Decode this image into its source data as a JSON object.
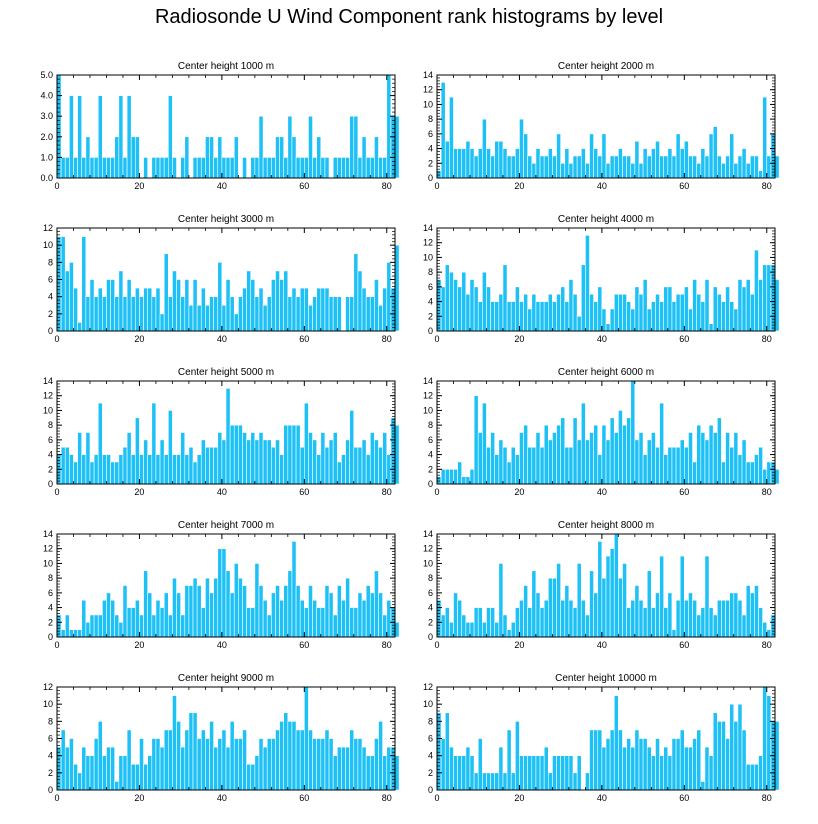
{
  "figure_title": "Radiosonde U Wind Component rank histograms by level",
  "colors": {
    "bar": "#1ec1f5",
    "bar_edge": "#ffffff",
    "axis": "#000000"
  },
  "chart_data": [
    {
      "type": "bar",
      "title": "Center height 1000 m",
      "xlabel": "",
      "ylabel": "",
      "xlim": [
        0,
        82
      ],
      "xticks": [
        0,
        20,
        40,
        60,
        80
      ],
      "ylim": [
        0,
        5
      ],
      "yticks": [
        0,
        1,
        2,
        3,
        4,
        5
      ],
      "ytick_labels": [
        "0.0",
        "1.0",
        "2.0",
        "3.0",
        "4.0",
        "5.0"
      ],
      "values": [
        5,
        1,
        1,
        4,
        1,
        4,
        1,
        2,
        1,
        1,
        4,
        1,
        1,
        1,
        2,
        4,
        1,
        4,
        2,
        2,
        0,
        1,
        0,
        1,
        1,
        1,
        1,
        4,
        1,
        0,
        1,
        2,
        0,
        1,
        1,
        1,
        2,
        2,
        1,
        2,
        1,
        1,
        1,
        2,
        0,
        1,
        0,
        1,
        1,
        3,
        1,
        1,
        1,
        2,
        2,
        1,
        3,
        2,
        1,
        1,
        1,
        3,
        1,
        2,
        1,
        1,
        0,
        1,
        1,
        1,
        1,
        3,
        3,
        1,
        2,
        1,
        1,
        2,
        1,
        1,
        5,
        3,
        3
      ]
    },
    {
      "type": "bar",
      "title": "Center height 2000 m",
      "xlabel": "",
      "ylabel": "",
      "xlim": [
        0,
        82
      ],
      "xticks": [
        0,
        20,
        40,
        60,
        80
      ],
      "ylim": [
        0,
        14
      ],
      "yticks": [
        0,
        2,
        4,
        6,
        8,
        10,
        12,
        14
      ],
      "ytick_labels": [
        "0",
        "2",
        "4",
        "6",
        "8",
        "10",
        "12",
        "14"
      ],
      "values": [
        1,
        13,
        5,
        11,
        4,
        4,
        4,
        5,
        4,
        3,
        4,
        8,
        4,
        3,
        5,
        5,
        4,
        3,
        3,
        4,
        8,
        6,
        3,
        2,
        4,
        3,
        3,
        4,
        3,
        6,
        2,
        4,
        2,
        3,
        3,
        4,
        2,
        6,
        4,
        3,
        6,
        2,
        3,
        3,
        4,
        3,
        3,
        2,
        5,
        2,
        4,
        3,
        4,
        5,
        3,
        3,
        4,
        3,
        6,
        4,
        5,
        3,
        3,
        2,
        4,
        3,
        6,
        7,
        3,
        2,
        3,
        6,
        2,
        3,
        4,
        2,
        3,
        3,
        1,
        11,
        3,
        6,
        3
      ]
    },
    {
      "type": "bar",
      "title": "Center height 3000 m",
      "xlabel": "",
      "ylabel": "",
      "xlim": [
        0,
        82
      ],
      "xticks": [
        0,
        20,
        40,
        60,
        80
      ],
      "ylim": [
        0,
        12
      ],
      "yticks": [
        0,
        2,
        4,
        6,
        8,
        10,
        12
      ],
      "ytick_labels": [
        "0",
        "2",
        "4",
        "6",
        "8",
        "10",
        "12"
      ],
      "values": [
        11,
        11,
        7,
        8,
        5,
        1,
        11,
        4,
        6,
        4,
        5,
        4,
        6,
        6,
        4,
        7,
        4,
        6,
        4,
        5,
        4,
        5,
        5,
        4,
        5,
        2,
        9,
        4,
        7,
        6,
        4,
        6,
        3,
        6,
        3,
        5,
        3,
        4,
        4,
        8,
        3,
        6,
        4,
        2,
        4,
        5,
        7,
        6,
        4,
        5,
        3,
        4,
        6,
        7,
        6,
        7,
        4,
        5,
        4,
        5,
        5,
        3,
        4,
        5,
        5,
        5,
        4,
        4,
        4,
        0,
        4,
        4,
        9,
        7,
        5,
        4,
        4,
        6,
        3,
        5,
        8,
        5,
        10
      ]
    },
    {
      "type": "bar",
      "title": "Center height 4000 m",
      "xlabel": "",
      "ylabel": "",
      "xlim": [
        0,
        82
      ],
      "xticks": [
        0,
        20,
        40,
        60,
        80
      ],
      "ylim": [
        0,
        14
      ],
      "yticks": [
        0,
        2,
        4,
        6,
        8,
        10,
        12,
        14
      ],
      "ytick_labels": [
        "0",
        "2",
        "4",
        "6",
        "8",
        "10",
        "12",
        "14"
      ],
      "values": [
        7,
        6,
        9,
        8,
        7,
        6,
        8,
        5,
        7,
        6,
        4,
        8,
        6,
        4,
        4,
        5,
        9,
        4,
        4,
        6,
        4,
        5,
        3,
        5,
        4,
        4,
        4,
        5,
        4,
        5,
        6,
        4,
        7,
        5,
        2,
        9,
        13,
        5,
        4,
        6,
        3,
        1,
        3,
        5,
        5,
        5,
        4,
        3,
        6,
        5,
        7,
        3,
        4,
        5,
        4,
        6,
        6,
        4,
        5,
        5,
        6,
        3,
        7,
        5,
        4,
        7,
        1,
        6,
        5,
        4,
        6,
        4,
        3,
        7,
        6,
        7,
        5,
        11,
        7,
        9,
        9,
        9,
        7
      ]
    },
    {
      "type": "bar",
      "title": "Center height 5000 m",
      "xlabel": "",
      "ylabel": "",
      "xlim": [
        0,
        82
      ],
      "xticks": [
        0,
        20,
        40,
        60,
        80
      ],
      "ylim": [
        0,
        14
      ],
      "yticks": [
        0,
        2,
        4,
        6,
        8,
        10,
        12,
        14
      ],
      "ytick_labels": [
        "0",
        "2",
        "4",
        "6",
        "8",
        "10",
        "12",
        "14"
      ],
      "values": [
        4,
        5,
        5,
        4,
        3,
        7,
        4,
        7,
        3,
        4,
        11,
        4,
        4,
        3,
        3,
        4,
        5,
        7,
        4,
        9,
        4,
        6,
        4,
        11,
        4,
        6,
        4,
        10,
        4,
        4,
        7,
        4,
        5,
        3,
        4,
        6,
        5,
        5,
        5,
        7,
        6,
        13,
        8,
        8,
        8,
        7,
        6,
        7,
        6,
        7,
        6,
        6,
        5,
        6,
        4,
        8,
        8,
        8,
        8,
        5,
        11,
        7,
        6,
        4,
        7,
        5,
        6,
        7,
        3,
        4,
        6,
        10,
        5,
        5,
        6,
        4,
        7,
        6,
        5,
        7,
        4,
        9,
        8
      ]
    },
    {
      "type": "bar",
      "title": "Center height 6000 m",
      "xlabel": "",
      "ylabel": "",
      "xlim": [
        0,
        82
      ],
      "xticks": [
        0,
        20,
        40,
        60,
        80
      ],
      "ylim": [
        0,
        14
      ],
      "yticks": [
        0,
        2,
        4,
        6,
        8,
        10,
        12,
        14
      ],
      "ytick_labels": [
        "0",
        "2",
        "4",
        "6",
        "8",
        "10",
        "12",
        "14"
      ],
      "values": [
        1,
        2,
        2,
        2,
        2,
        3,
        1,
        1,
        2,
        12,
        7,
        11,
        5,
        7,
        4,
        6,
        5,
        3,
        5,
        4,
        7,
        8,
        5,
        5,
        7,
        5,
        8,
        6,
        7,
        8,
        9,
        5,
        5,
        9,
        6,
        11,
        6,
        7,
        8,
        4,
        8,
        6,
        9,
        7,
        10,
        8,
        9,
        14,
        6,
        7,
        4,
        6,
        7,
        5,
        11,
        4,
        5,
        5,
        5,
        6,
        5,
        7,
        3,
        8,
        7,
        6,
        8,
        7,
        9,
        3,
        7,
        5,
        7,
        4,
        6,
        3,
        3,
        4,
        5,
        2,
        3,
        3,
        2
      ]
    },
    {
      "type": "bar",
      "title": "Center height 7000 m",
      "xlabel": "",
      "ylabel": "",
      "xlim": [
        0,
        82
      ],
      "xticks": [
        0,
        20,
        40,
        60,
        80
      ],
      "ylim": [
        0,
        14
      ],
      "yticks": [
        0,
        2,
        4,
        6,
        8,
        10,
        12,
        14
      ],
      "ytick_labels": [
        "0",
        "2",
        "4",
        "6",
        "8",
        "10",
        "12",
        "14"
      ],
      "values": [
        3,
        1,
        3,
        1,
        1,
        1,
        5,
        2,
        3,
        3,
        3,
        5,
        6,
        5,
        3,
        2,
        7,
        4,
        4,
        5,
        3,
        9,
        6,
        3,
        5,
        4,
        6,
        3,
        8,
        6,
        3,
        7,
        7,
        8,
        7,
        4,
        8,
        6,
        8,
        12,
        12,
        9,
        6,
        10,
        8,
        7,
        4,
        4,
        10,
        7,
        5,
        3,
        6,
        7,
        5,
        7,
        9,
        13,
        7,
        5,
        4,
        7,
        5,
        4,
        4,
        7,
        6,
        3,
        7,
        5,
        8,
        4,
        4,
        6,
        5,
        7,
        6,
        9,
        6,
        3,
        5,
        4,
        2
      ]
    },
    {
      "type": "bar",
      "title": "Center height 8000 m",
      "xlabel": "",
      "ylabel": "",
      "xlim": [
        0,
        82
      ],
      "xticks": [
        0,
        20,
        40,
        60,
        80
      ],
      "ylim": [
        0,
        14
      ],
      "yticks": [
        0,
        2,
        4,
        6,
        8,
        10,
        12,
        14
      ],
      "ytick_labels": [
        "0",
        "2",
        "4",
        "6",
        "8",
        "10",
        "12",
        "14"
      ],
      "values": [
        5,
        3,
        4,
        2,
        6,
        5,
        3,
        2,
        2,
        4,
        4,
        2,
        4,
        4,
        2,
        10,
        3,
        1,
        2,
        4,
        5,
        7,
        4,
        9,
        6,
        4,
        5,
        8,
        8,
        10,
        5,
        7,
        5,
        4,
        10,
        5,
        3,
        9,
        6,
        13,
        8,
        11,
        12,
        14,
        8,
        10,
        4,
        5,
        7,
        5,
        4,
        9,
        4,
        6,
        11,
        4,
        6,
        1,
        5,
        11,
        5,
        6,
        5,
        3,
        4,
        11,
        4,
        3,
        5,
        5,
        5,
        6,
        6,
        5,
        3,
        7,
        6,
        7,
        4,
        2,
        1,
        3,
        0
      ]
    },
    {
      "type": "bar",
      "title": "Center height 9000 m",
      "xlabel": "",
      "ylabel": "",
      "xlim": [
        0,
        82
      ],
      "xticks": [
        0,
        20,
        40,
        60,
        80
      ],
      "ylim": [
        0,
        12
      ],
      "yticks": [
        0,
        2,
        4,
        6,
        8,
        10,
        12
      ],
      "ytick_labels": [
        "0",
        "2",
        "4",
        "6",
        "8",
        "10",
        "12"
      ],
      "values": [
        5,
        7,
        5,
        6,
        3,
        2,
        5,
        4,
        4,
        6,
        8,
        4,
        5,
        5,
        1,
        4,
        4,
        7,
        3,
        3,
        6,
        3,
        4,
        6,
        6,
        5,
        7,
        7,
        11,
        8,
        5,
        7,
        9,
        9,
        6,
        7,
        6,
        8,
        5,
        6,
        7,
        5,
        8,
        6,
        6,
        7,
        3,
        3,
        4,
        6,
        5,
        6,
        6,
        7,
        8,
        9,
        8,
        8,
        7,
        7,
        12,
        7,
        6,
        6,
        6,
        7,
        6,
        4,
        5,
        5,
        5,
        7,
        6,
        6,
        5,
        4,
        4,
        6,
        8,
        4,
        5,
        5,
        4
      ]
    },
    {
      "type": "bar",
      "title": "Center height 10000 m",
      "xlabel": "",
      "ylabel": "",
      "xlim": [
        0,
        82
      ],
      "xticks": [
        0,
        20,
        40,
        60,
        80
      ],
      "ylim": [
        0,
        12
      ],
      "yticks": [
        0,
        2,
        4,
        6,
        8,
        10,
        12
      ],
      "ytick_labels": [
        "0",
        "2",
        "4",
        "6",
        "8",
        "10",
        "12"
      ],
      "values": [
        9,
        6,
        9,
        5,
        4,
        4,
        4,
        5,
        4,
        2,
        6,
        2,
        2,
        2,
        2,
        5,
        2,
        7,
        2,
        8,
        4,
        4,
        4,
        4,
        4,
        4,
        5,
        2,
        4,
        4,
        4,
        4,
        4,
        2,
        4,
        0,
        2,
        7,
        7,
        7,
        5,
        6,
        7,
        11,
        7,
        5,
        6,
        5,
        7,
        6,
        6,
        5,
        4,
        6,
        4,
        5,
        4,
        6,
        6,
        7,
        5,
        5,
        6,
        7,
        1,
        5,
        4,
        9,
        8,
        8,
        6,
        10,
        8,
        10,
        7,
        3,
        3,
        3,
        4,
        12,
        11,
        8,
        8
      ]
    }
  ]
}
